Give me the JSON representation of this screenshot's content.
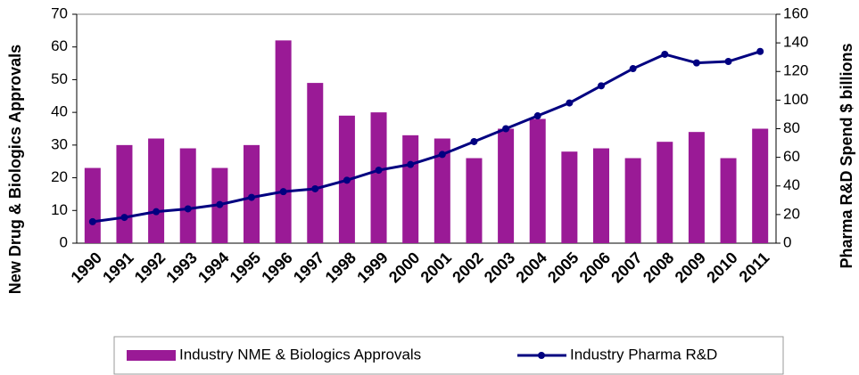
{
  "chart_data": {
    "type": "bar",
    "y_label": "New Drug & Biologics Approvals",
    "y2_label": "Pharma R&D Spend $ billions",
    "categories": [
      "1990",
      "1991",
      "1992",
      "1993",
      "1994",
      "1995",
      "1996",
      "1997",
      "1998",
      "1999",
      "2000",
      "2001",
      "2002",
      "2003",
      "2004",
      "2005",
      "2006",
      "2007",
      "2008",
      "2009",
      "2010",
      "2011"
    ],
    "series": [
      {
        "name": "Industry NME & Biologics Approvals",
        "type": "bar",
        "color": "#9a1a96",
        "axis": "y",
        "values": [
          23,
          30,
          32,
          29,
          23,
          30,
          62,
          49,
          39,
          40,
          33,
          32,
          26,
          35,
          38,
          28,
          29,
          26,
          31,
          34,
          26,
          35
        ]
      },
      {
        "name": "Industry Pharma R&D",
        "type": "line",
        "color": "#000080",
        "axis": "y2",
        "values": [
          15,
          18,
          22,
          24,
          27,
          32,
          36,
          38,
          44,
          51,
          55,
          62,
          71,
          80,
          89,
          98,
          110,
          122,
          132,
          126,
          127,
          134
        ]
      }
    ],
    "ylim": [
      0,
      70
    ],
    "yticks": [
      0,
      10,
      20,
      30,
      40,
      50,
      60,
      70
    ],
    "y2lim": [
      0,
      160
    ],
    "y2ticks": [
      0,
      20,
      40,
      60,
      80,
      100,
      120,
      140,
      160
    ]
  }
}
